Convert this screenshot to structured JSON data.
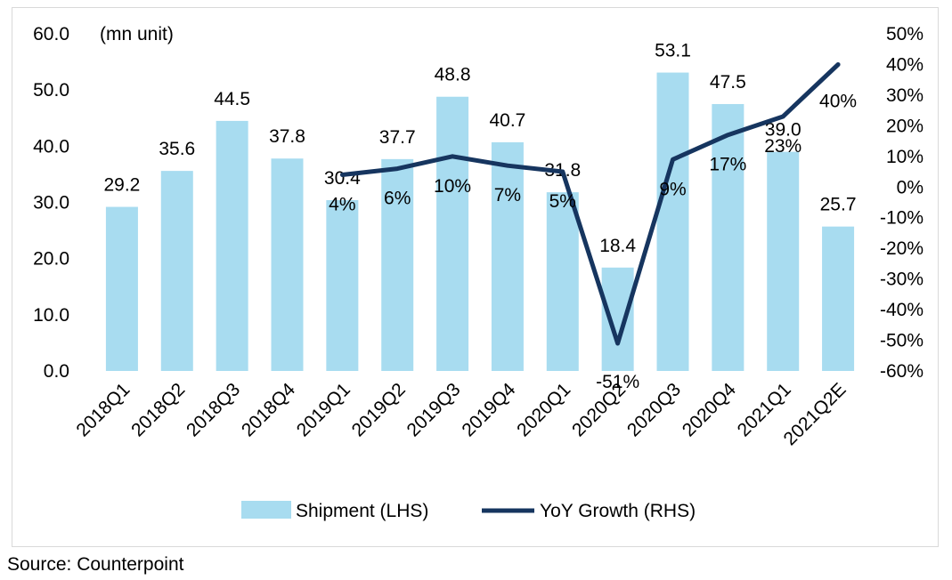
{
  "chart_data": {
    "type": "bar+line",
    "unit_note": "(mn unit)",
    "categories": [
      "2018Q1",
      "2018Q2",
      "2018Q3",
      "2018Q4",
      "2019Q1",
      "2019Q2",
      "2019Q3",
      "2019Q4",
      "2020Q1",
      "2020Q2",
      "2020Q3",
      "2020Q4",
      "2021Q1",
      "2021Q2E"
    ],
    "bar_series": {
      "name": "Shipment (LHS)",
      "color": "#a8dcf0",
      "values": [
        29.2,
        35.6,
        44.5,
        37.8,
        30.4,
        37.7,
        48.8,
        40.7,
        31.8,
        18.4,
        53.1,
        47.5,
        39.0,
        25.7
      ],
      "labels": [
        "29.2",
        "35.6",
        "44.5",
        "37.8",
        "30.4",
        "37.7",
        "48.8",
        "40.7",
        "31.8",
        "18.4",
        "53.1",
        "47.5",
        "39.0",
        "25.7"
      ]
    },
    "line_series": {
      "name": "YoY Growth (RHS)",
      "color": "#16355f",
      "start_index": 4,
      "values": [
        4,
        6,
        10,
        7,
        5,
        -51,
        9,
        17,
        23,
        40
      ],
      "labels": [
        "4%",
        "6%",
        "10%",
        "7%",
        "5%",
        "-51%",
        "9%",
        "17%",
        "23%",
        "40%"
      ]
    },
    "left_axis": {
      "min": 0,
      "max": 60,
      "ticks": [
        "0.0",
        "10.0",
        "20.0",
        "30.0",
        "40.0",
        "50.0",
        "60.0"
      ]
    },
    "right_axis": {
      "min": -60,
      "max": 50,
      "ticks": [
        "-60%",
        "-50%",
        "-40%",
        "-30%",
        "-20%",
        "-10%",
        "0%",
        "10%",
        "20%",
        "30%",
        "40%",
        "50%"
      ]
    },
    "legend_position": "bottom"
  },
  "source": "Source: Counterpoint"
}
